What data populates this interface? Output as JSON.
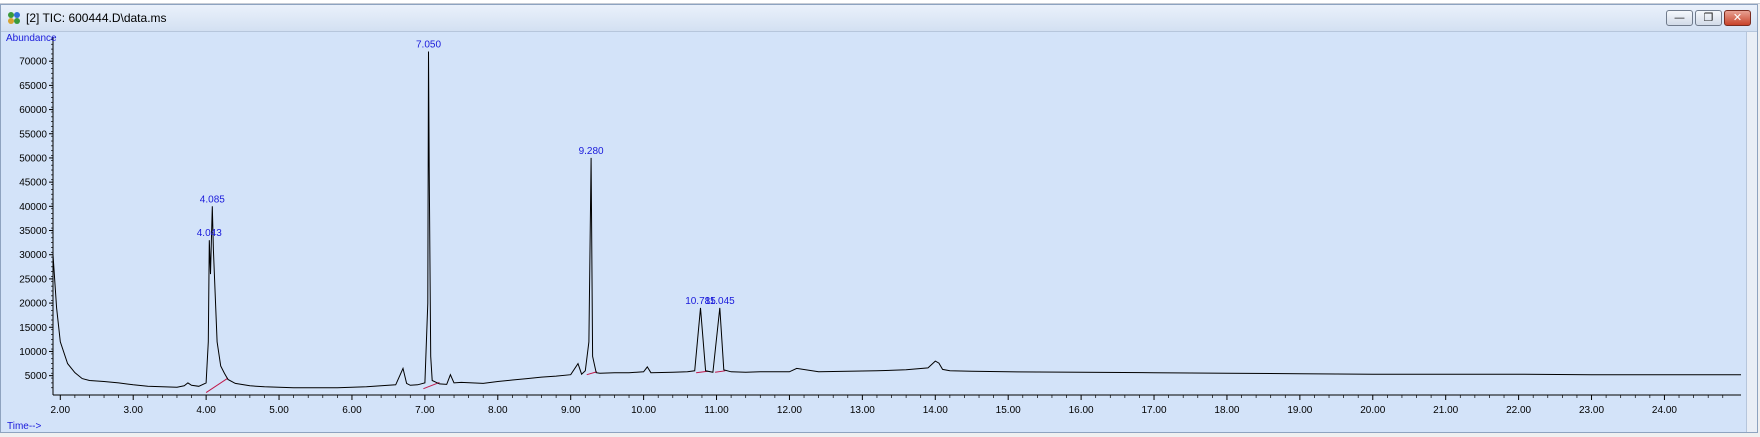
{
  "window": {
    "title": "[2] TIC: 600444.D\\data.ms",
    "minimize_glyph": "—",
    "restore_glyph": "❐",
    "close_glyph": "✕"
  },
  "colors": {
    "plot_bg": "#d3e3f9",
    "trace": "#000000",
    "baseline": "#c0184a",
    "label": "#1a1adb"
  },
  "chart_data": {
    "type": "line",
    "title": "",
    "ylabel": "Abundance",
    "xlabel": "Time-->",
    "xlim": [
      1.9,
      25.05
    ],
    "ylim": [
      1000,
      75000
    ],
    "xticks": [
      "2.00",
      "3.00",
      "4.00",
      "5.00",
      "6.00",
      "7.00",
      "8.00",
      "9.00",
      "10.00",
      "11.00",
      "12.00",
      "13.00",
      "14.00",
      "15.00",
      "16.00",
      "17.00",
      "18.00",
      "19.00",
      "20.00",
      "21.00",
      "22.00",
      "23.00",
      "24.00"
    ],
    "yticks": [
      "5000",
      "10000",
      "15000",
      "20000",
      "25000",
      "30000",
      "35000",
      "40000",
      "45000",
      "50000",
      "55000",
      "60000",
      "65000",
      "70000"
    ],
    "series": [
      {
        "x": [
          1.9,
          1.95,
          2.0,
          2.1,
          2.2,
          2.3,
          2.4,
          2.6,
          2.8,
          3.0,
          3.2,
          3.4,
          3.6,
          3.7,
          3.75,
          3.8,
          3.9,
          4.0,
          4.03,
          4.043,
          4.06,
          4.085,
          4.1,
          4.15,
          4.2,
          4.25,
          4.3,
          4.4,
          4.6,
          4.8,
          5.0,
          5.2,
          5.4,
          5.6,
          5.8,
          6.0,
          6.2,
          6.4,
          6.6,
          6.7,
          6.75,
          6.8,
          6.9,
          7.0,
          7.04,
          7.05,
          7.06,
          7.08,
          7.1,
          7.2,
          7.3,
          7.35,
          7.4,
          7.5,
          7.8,
          8.0,
          8.2,
          8.4,
          8.6,
          8.8,
          9.0,
          9.1,
          9.15,
          9.2,
          9.25,
          9.28,
          9.3,
          9.35,
          9.4,
          9.6,
          9.8,
          10.0,
          10.05,
          10.1,
          10.4,
          10.6,
          10.7,
          10.78,
          10.85,
          10.95,
          11.045,
          11.1,
          11.2,
          11.4,
          11.6,
          12.0,
          12.1,
          12.4,
          12.8,
          13.2,
          13.6,
          13.9,
          14.0,
          14.05,
          14.1,
          14.2,
          14.5,
          15.0,
          16.0,
          17.0,
          18.0,
          19.0,
          20.0,
          21.0,
          22.0,
          23.0,
          24.0,
          25.05
        ],
        "y": [
          30000,
          19000,
          12000,
          7500,
          5600,
          4400,
          4000,
          3800,
          3500,
          3100,
          2800,
          2700,
          2600,
          2900,
          3500,
          3000,
          2800,
          3500,
          12000,
          33000,
          26000,
          40000,
          31000,
          12000,
          7000,
          5500,
          4200,
          3400,
          2900,
          2700,
          2600,
          2500,
          2500,
          2500,
          2500,
          2600,
          2700,
          2900,
          3100,
          6500,
          3400,
          3000,
          3100,
          3500,
          20000,
          72000,
          48000,
          9000,
          4000,
          3300,
          3200,
          5200,
          3500,
          3600,
          3400,
          3800,
          4100,
          4400,
          4700,
          4900,
          5200,
          7500,
          5300,
          6000,
          12000,
          50000,
          9000,
          5600,
          5500,
          5600,
          5600,
          5800,
          6800,
          5600,
          5700,
          5800,
          6000,
          19000,
          6000,
          5700,
          19000,
          6200,
          5800,
          5700,
          5800,
          5800,
          6500,
          5800,
          5900,
          6000,
          6200,
          6600,
          8000,
          7600,
          6300,
          6000,
          5900,
          5800,
          5700,
          5600,
          5500,
          5400,
          5300,
          5300,
          5300,
          5200,
          5200,
          5200
        ]
      }
    ],
    "baselines": [
      {
        "x": [
          4.0,
          4.3
        ],
        "y": [
          1500,
          4500
        ]
      },
      {
        "x": [
          6.98,
          7.2
        ],
        "y": [
          2300,
          3600
        ]
      },
      {
        "x": [
          9.22,
          9.36
        ],
        "y": [
          5200,
          5800
        ]
      },
      {
        "x": [
          10.72,
          10.88
        ],
        "y": [
          5600,
          5900
        ]
      },
      {
        "x": [
          10.98,
          11.12
        ],
        "y": [
          5700,
          6000
        ]
      }
    ],
    "annotations": [
      {
        "label": "4.085",
        "x": 4.085,
        "y": 40000
      },
      {
        "label": "4.043",
        "x": 4.043,
        "y": 33000
      },
      {
        "label": "7.050",
        "x": 7.05,
        "y": 72000
      },
      {
        "label": "9.280",
        "x": 9.28,
        "y": 50000
      },
      {
        "label": "10.785",
        "x": 10.78,
        "y": 19000
      },
      {
        "label": "11.045",
        "x": 11.045,
        "y": 19000
      }
    ]
  }
}
